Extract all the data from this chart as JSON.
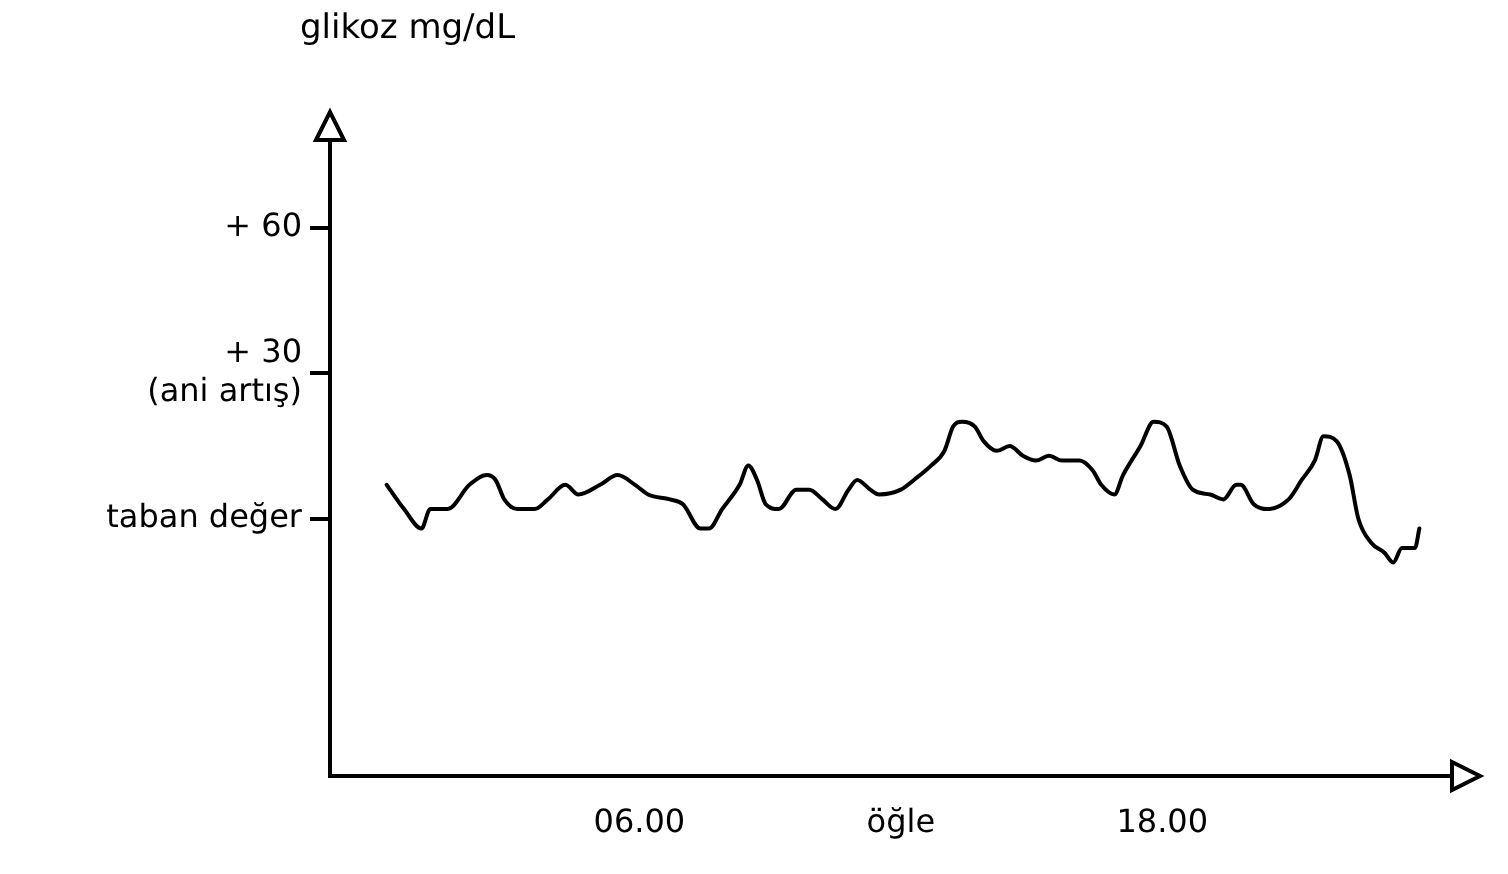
{
  "chart_data": {
    "type": "line",
    "ylabel": "glikoz mg/dL",
    "x": [
      0.2,
      0.6,
      1.0,
      1.2,
      1.6,
      2.1,
      2.5,
      2.7,
      2.9,
      3.2,
      3.6,
      3.9,
      4.3,
      4.6,
      5.1,
      5.5,
      5.9,
      6.2,
      6.7,
      7.0,
      7.4,
      7.6,
      7.9,
      8.3,
      8.5,
      8.7,
      8.9,
      9.2,
      9.6,
      9.9,
      10.2,
      10.5,
      10.8,
      11.0,
      11.3,
      11.5,
      12.0,
      12.3,
      12.7,
      13.0,
      13.2,
      13.4,
      13.7,
      13.9,
      14.2,
      14.5,
      14.8,
      15.1,
      15.4,
      15.7,
      16.1,
      16.4,
      16.6,
      16.9,
      17.1,
      17.5,
      17.8,
      18.1,
      18.4,
      18.7,
      19.1,
      19.4,
      19.7,
      19.8,
      20.1,
      20.4,
      20.9,
      21.2,
      21.5,
      21.7,
      22.0,
      22.3,
      22.5,
      22.8,
      23.1,
      23.3,
      23.5,
      23.8,
      23.9
    ],
    "series": [
      {
        "color": "#000000",
        "values": [
          7,
          2,
          -2,
          2,
          2,
          7,
          9,
          8,
          4,
          2,
          2,
          4,
          7,
          5,
          7,
          9,
          7,
          5,
          4,
          3,
          -2,
          -2,
          2,
          7,
          11,
          8,
          3,
          2,
          6,
          6,
          4,
          2,
          6,
          8,
          6,
          5,
          6,
          8,
          11,
          14,
          19,
          20,
          19,
          16,
          14,
          15,
          13,
          12,
          13,
          12,
          12,
          10,
          7,
          5,
          9,
          15,
          20,
          19,
          11,
          6,
          5,
          4,
          7,
          7,
          3,
          2,
          4,
          8,
          12,
          17,
          16,
          9,
          0,
          -5,
          -7,
          -9,
          -6,
          -6,
          -2
        ]
      }
    ],
    "xlim": [
      -1.1,
      25.2
    ],
    "ylim": [
      -53,
      83
    ],
    "xticks": [
      {
        "value": 6,
        "label": "06.00"
      },
      {
        "value": 12,
        "label": "öğle"
      },
      {
        "value": 18,
        "label": "18.00"
      }
    ],
    "yticks": [
      {
        "value": 0,
        "label": "taban değer"
      },
      {
        "value": 30,
        "label": "+ 30\n(ani artış)"
      },
      {
        "value": 60,
        "label": "+ 60"
      }
    ],
    "grid": false,
    "legend": false,
    "marker": "none",
    "line_style": "solid"
  }
}
